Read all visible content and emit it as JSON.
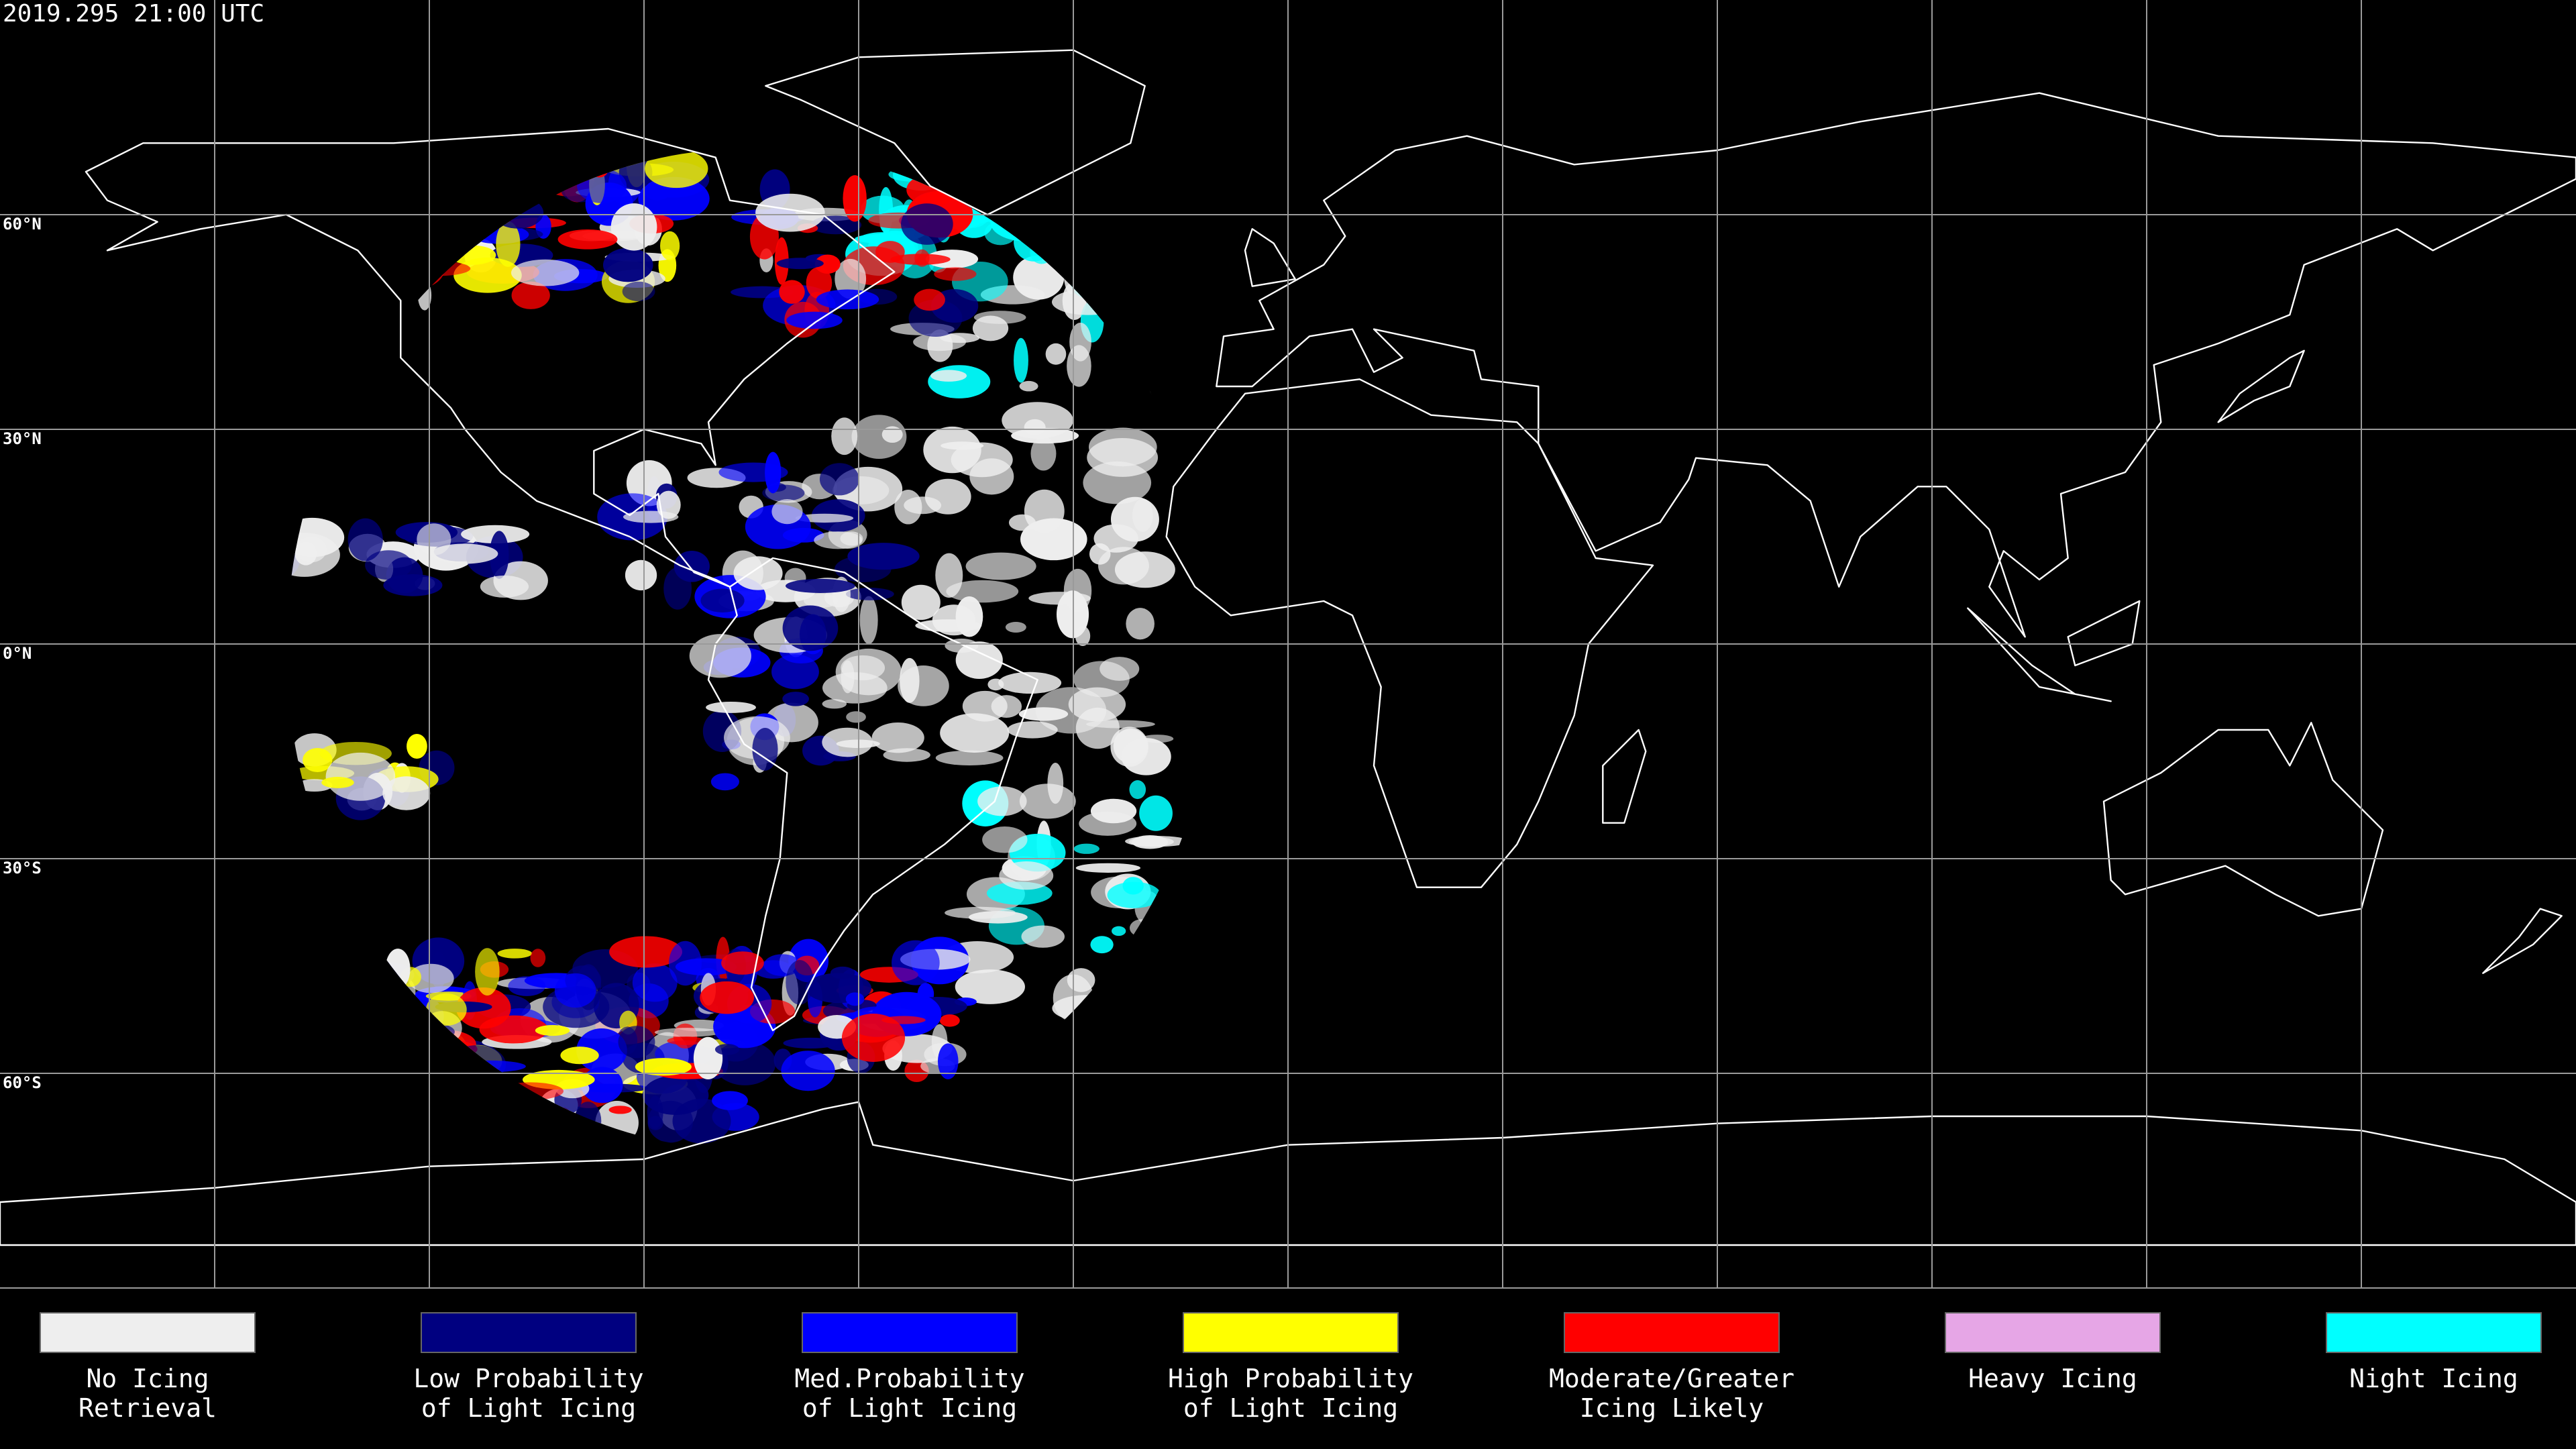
{
  "header": {
    "timestamp": "2019.295 21:00 UTC"
  },
  "lat_labels": [
    "60°N",
    "30°N",
    "0°N",
    "30°S",
    "60°S"
  ],
  "legend": [
    {
      "lines": [
        "No Icing",
        "Retrieval"
      ],
      "color": "#eeeeee"
    },
    {
      "lines": [
        "Low Probability",
        "of Light Icing"
      ],
      "color": "#000080"
    },
    {
      "lines": [
        "Med.Probability",
        "of Light Icing"
      ],
      "color": "#0000ff"
    },
    {
      "lines": [
        "High Probability",
        "of Light Icing"
      ],
      "color": "#ffff00"
    },
    {
      "lines": [
        "Moderate/Greater",
        "Icing Likely"
      ],
      "color": "#ff0000"
    },
    {
      "lines": [
        "Heavy Icing"
      ],
      "color": "#e6a6e6"
    },
    {
      "lines": [
        "Night Icing"
      ],
      "color": "#00ffff"
    }
  ]
}
